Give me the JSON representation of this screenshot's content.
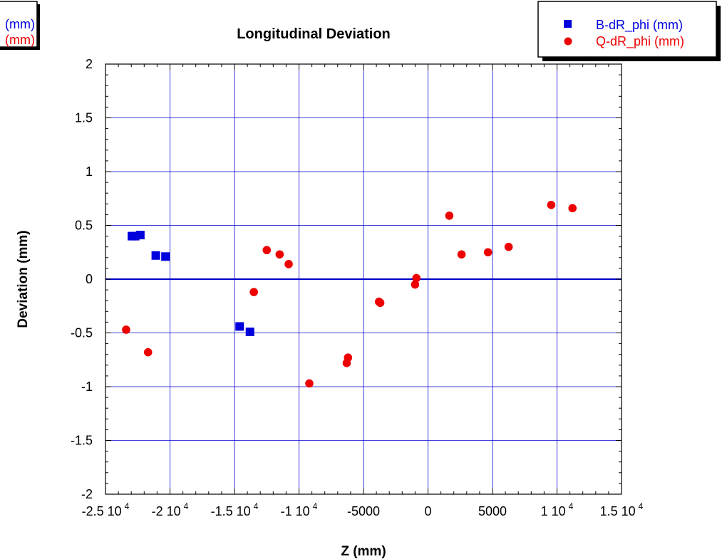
{
  "colors": {
    "grid": "#0000cc",
    "blue_series": "#0000dd",
    "red_series": "#ee0000",
    "axis": "#000000"
  },
  "chart_data": {
    "type": "scatter",
    "title": "Longitudinal Deviation",
    "xlabel": "Z (mm)",
    "ylabel": "Deviation (mm)",
    "xlim": [
      -25000,
      15000
    ],
    "ylim": [
      -2,
      2
    ],
    "grid": true,
    "legend_position": "top-right",
    "x_ticks": [
      {
        "value": -25000,
        "base": "-2.5 10",
        "exp": "4"
      },
      {
        "value": -20000,
        "base": "-2 10",
        "exp": "4"
      },
      {
        "value": -15000,
        "base": "-1.5 10",
        "exp": "4"
      },
      {
        "value": -10000,
        "base": "-1 10",
        "exp": "4"
      },
      {
        "value": -5000,
        "base": "-5000",
        "exp": ""
      },
      {
        "value": 0,
        "base": "0",
        "exp": ""
      },
      {
        "value": 5000,
        "base": "5000",
        "exp": ""
      },
      {
        "value": 10000,
        "base": "1 10",
        "exp": "4"
      },
      {
        "value": 15000,
        "base": "1.5 10",
        "exp": "4"
      }
    ],
    "y_ticks": [
      {
        "value": 2,
        "label": "2"
      },
      {
        "value": 1.5,
        "label": "1.5"
      },
      {
        "value": 1,
        "label": "1"
      },
      {
        "value": 0.5,
        "label": "0.5"
      },
      {
        "value": 0,
        "label": "0"
      },
      {
        "value": -0.5,
        "label": "-0.5"
      },
      {
        "value": -1,
        "label": "-1"
      },
      {
        "value": -1.5,
        "label": "-1.5"
      },
      {
        "value": -2,
        "label": "-2"
      }
    ],
    "series": [
      {
        "name": "B-dR_phi (mm)",
        "marker": "square",
        "color": "#0000dd",
        "points": [
          [
            -22950,
            0.4
          ],
          [
            -22700,
            0.4
          ],
          [
            -22300,
            0.41
          ],
          [
            -21100,
            0.22
          ],
          [
            -20350,
            0.21
          ],
          [
            -14600,
            -0.44
          ],
          [
            -13800,
            -0.49
          ]
        ]
      },
      {
        "name": "Q-dR_phi (mm)",
        "marker": "circle",
        "color": "#ee0000",
        "points": [
          [
            -23400,
            -0.47
          ],
          [
            -21700,
            -0.68
          ],
          [
            -13500,
            -0.12
          ],
          [
            -12500,
            0.27
          ],
          [
            -11500,
            0.23
          ],
          [
            -10800,
            0.14
          ],
          [
            -9200,
            -0.97
          ],
          [
            -6300,
            -0.78
          ],
          [
            -6200,
            -0.73
          ],
          [
            -3800,
            -0.21
          ],
          [
            -3700,
            -0.22
          ],
          [
            -1000,
            -0.05
          ],
          [
            -900,
            0.01
          ],
          [
            1650,
            0.59
          ],
          [
            2600,
            0.23
          ],
          [
            4650,
            0.25
          ],
          [
            6250,
            0.3
          ],
          [
            9550,
            0.69
          ],
          [
            11200,
            0.66
          ]
        ]
      }
    ]
  },
  "left_legend_partial": [
    {
      "text": "(mm)",
      "color": "#0000dd"
    },
    {
      "text": "(mm)",
      "color": "#ee0000"
    }
  ]
}
